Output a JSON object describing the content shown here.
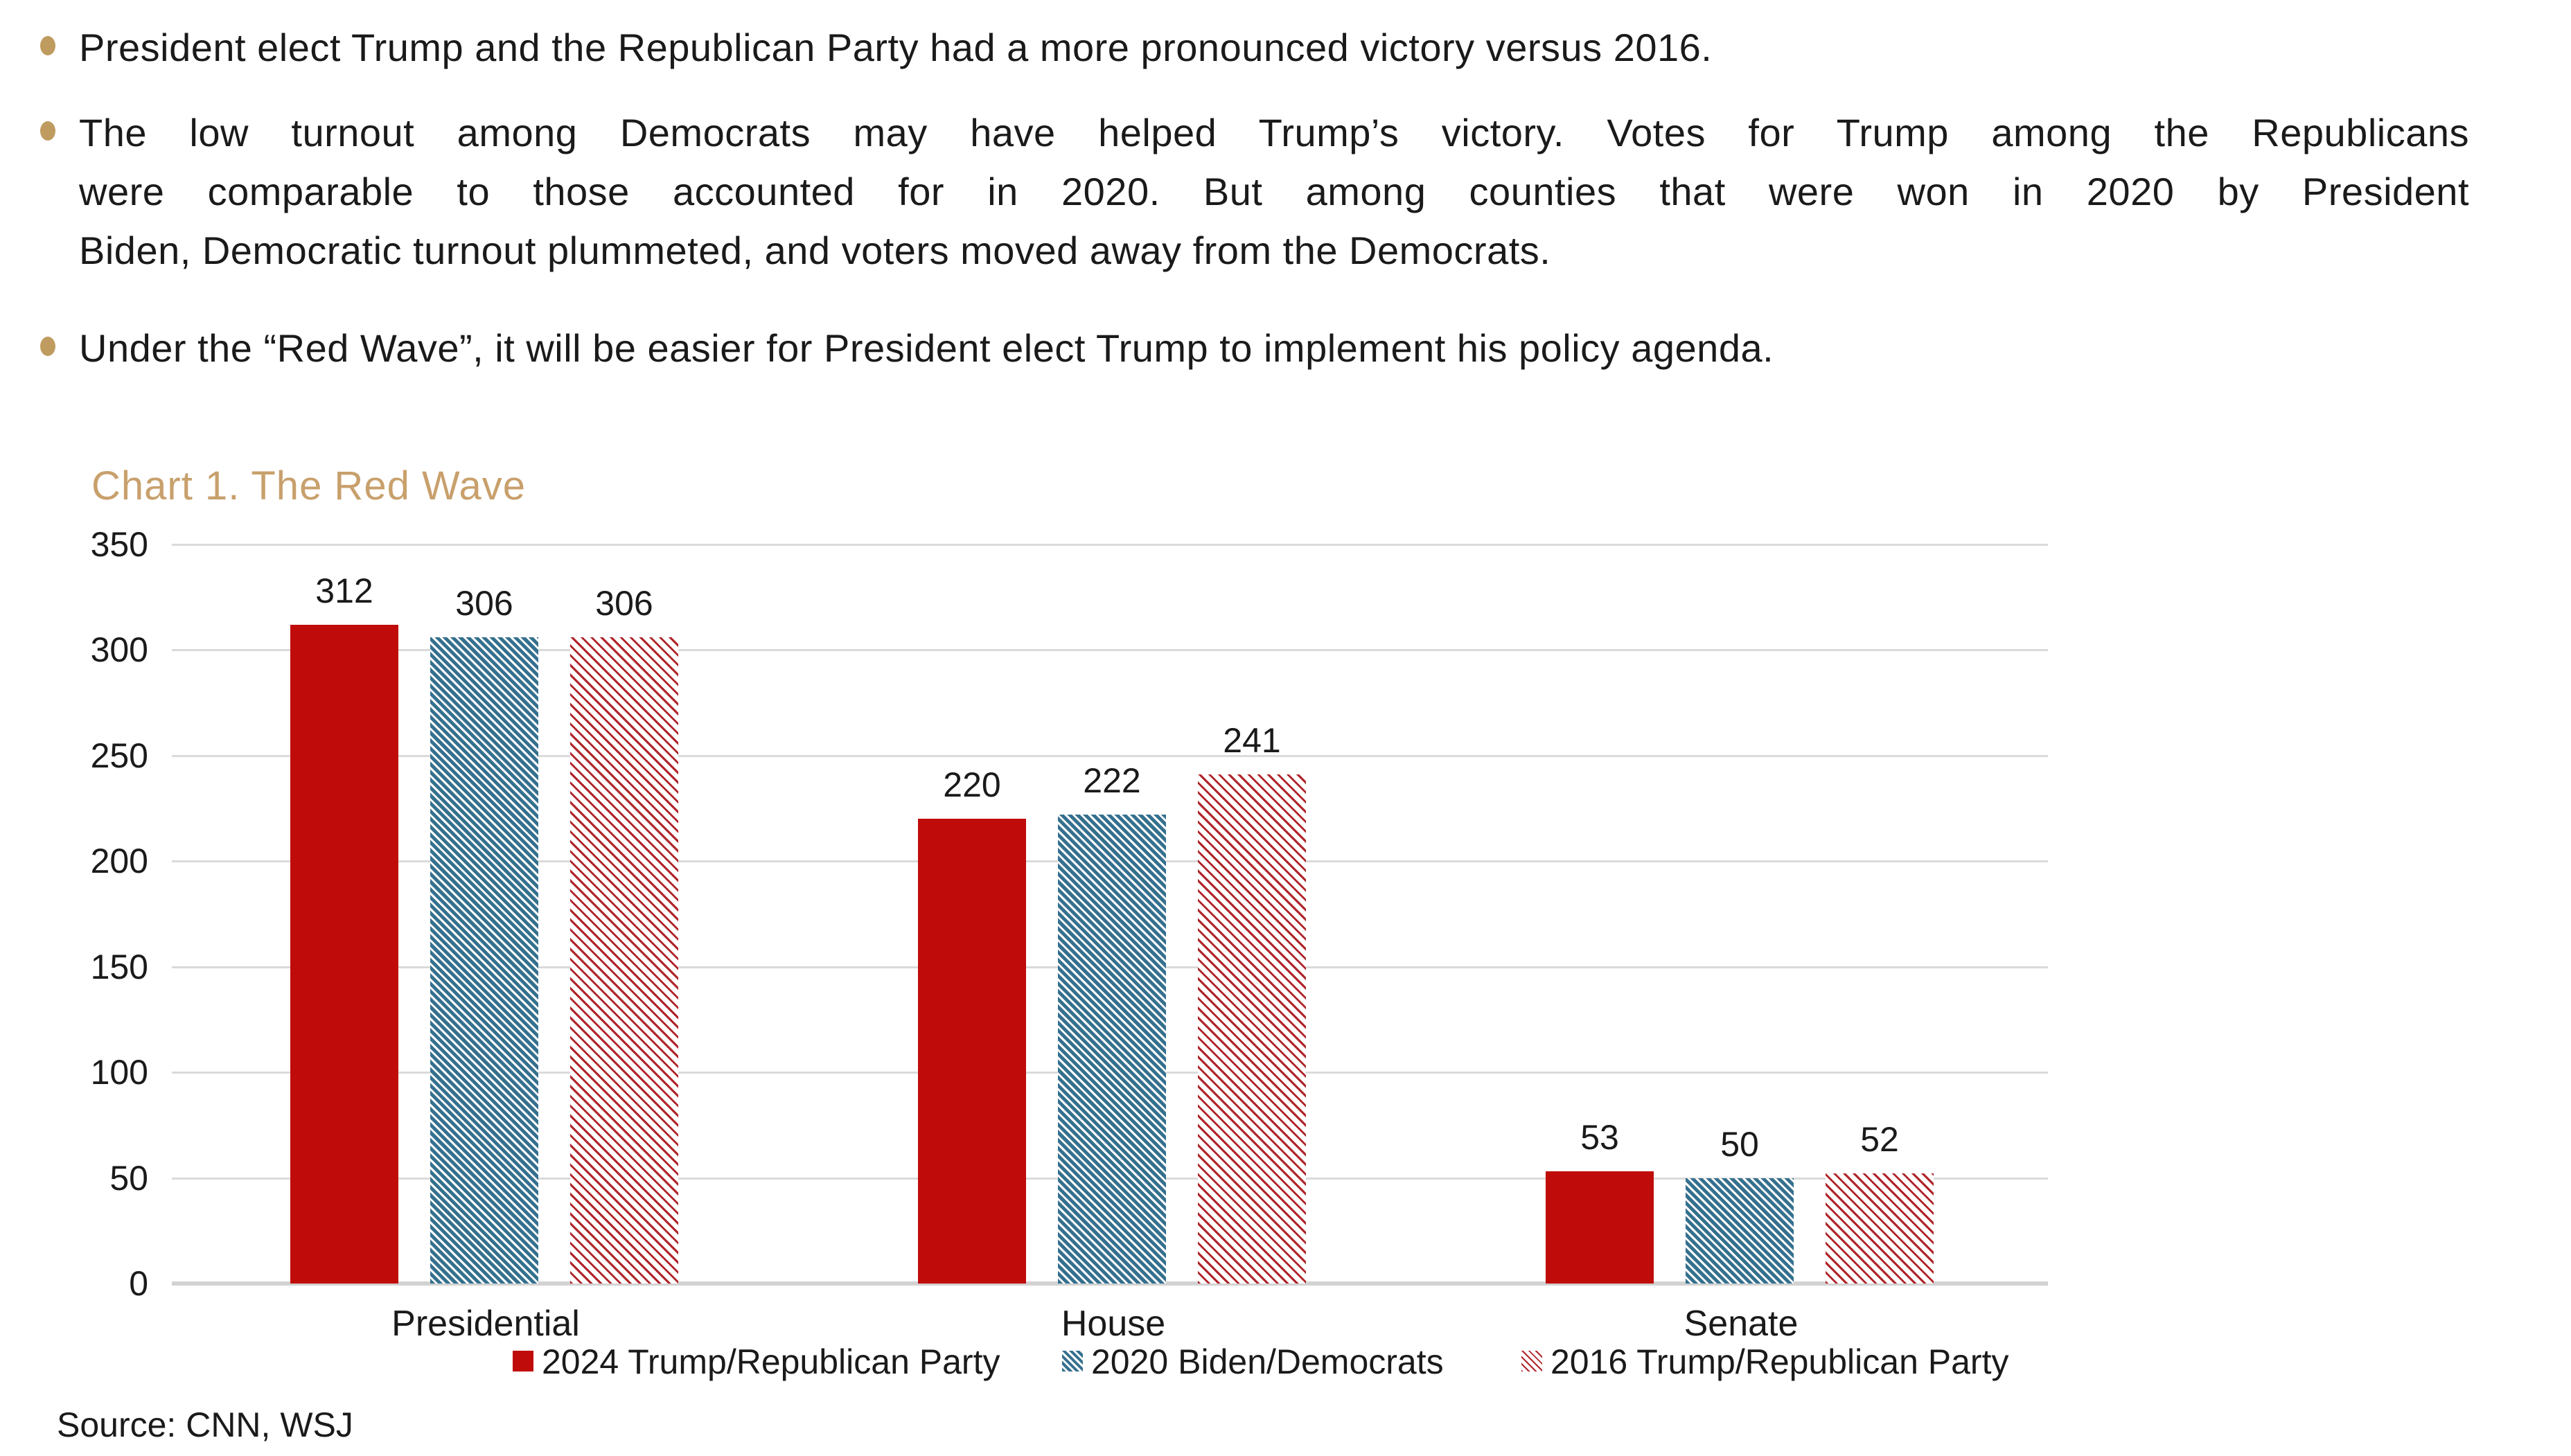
{
  "bullets": [
    {
      "lines": [
        "President elect Trump and the Republican Party had a more pronounced victory versus 2016."
      ]
    },
    {
      "lines": [
        "The low turnout among Democrats may have helped Trump’s victory. Votes for Trump among the Republicans",
        "were comparable to those accounted for in 2020. But among counties that were won in 2020 by President",
        "Biden, Democratic turnout plummeted, and voters moved away from the Democrats."
      ]
    },
    {
      "lines": [
        "Under the “Red Wave”, it will be easier for President elect Trump to implement his policy agenda."
      ]
    }
  ],
  "chart": {
    "title": "Chart 1. The Red Wave",
    "source": "Source: CNN, WSJ"
  },
  "chart_data": {
    "type": "bar",
    "title": "Chart 1. The Red Wave",
    "categories": [
      "Presidential",
      "House",
      "Senate"
    ],
    "series": [
      {
        "name": "2024 Trump/Republican Party",
        "values": [
          312,
          220,
          53
        ],
        "fill": "solid",
        "color": "#C00B0B"
      },
      {
        "name": "2020 Biden/Democrats",
        "values": [
          306,
          222,
          50
        ],
        "fill": "hatch-wide",
        "color": "#35708E"
      },
      {
        "name": "2016 Trump/Republican Party",
        "values": [
          306,
          241,
          52
        ],
        "fill": "hatch-light",
        "color": "#AF2429"
      }
    ],
    "ylim": [
      0,
      350
    ],
    "ytick_step": 50,
    "yticks": [
      0,
      50,
      100,
      150,
      200,
      250,
      300,
      350
    ],
    "grid": "horizontal",
    "legend_position": "bottom",
    "value_labels": true,
    "source": "Source: CNN, WSJ"
  },
  "colors": {
    "accent_tan": "#C8A06C",
    "bullet_dot": "#BF9B60",
    "bar_red_2024": "#C00B0B",
    "bar_blue_2020": "#35708E",
    "bar_red_2016": "#AF2429",
    "gridline": "#DADADA"
  }
}
